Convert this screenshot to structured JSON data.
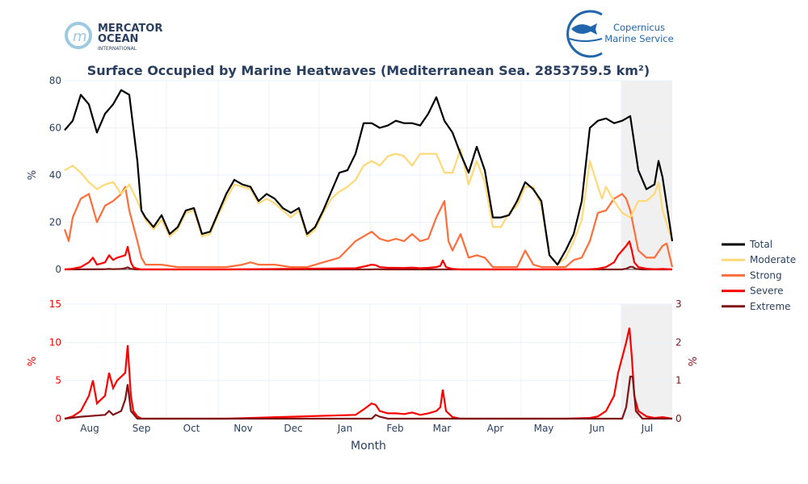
{
  "logos": {
    "left": {
      "line1": "MERCATOR",
      "line2": "OCEAN",
      "line3": "INTERNATIONAL"
    },
    "right": {
      "line1": "Copernicus",
      "line2": "Marine Service"
    }
  },
  "chart_data": {
    "type": "line",
    "title": "Surface Occupied by Marine Heatwaves (Mediterranean Sea. 2853759.5 km²)",
    "xlabel": "Month",
    "x_unit": "days since mid-July",
    "xlim": [
      0,
      376
    ],
    "x_ticks": [
      {
        "label": "Aug",
        "day": 15.5
      },
      {
        "label": "Sep",
        "day": 47.5
      },
      {
        "label": "Oct",
        "day": 78.5
      },
      {
        "label": "Nov",
        "day": 110.5
      },
      {
        "label": "Dec",
        "day": 141.5
      },
      {
        "label": "Jan",
        "day": 173.5
      },
      {
        "label": "Feb",
        "day": 204.5
      },
      {
        "label": "Mar",
        "day": 233.5
      },
      {
        "label": "Apr",
        "day": 266.5
      },
      {
        "label": "May",
        "day": 296.5
      },
      {
        "label": "Jun",
        "day": 329.5
      },
      {
        "label": "Jul",
        "day": 360.5
      }
    ],
    "month_boundaries": [
      31.5,
      63,
      95,
      126.5,
      157.5,
      189,
      220,
      249,
      282.5,
      312.5,
      344.5
    ],
    "shaded_range": [
      344.5,
      376
    ],
    "grid": true,
    "legend_position": "right",
    "top_panel": {
      "ylabel": "%",
      "ylim": [
        0,
        80
      ],
      "yticks": [
        0,
        20,
        40,
        60,
        80
      ],
      "series": [
        "Total",
        "Moderate",
        "Strong",
        "Severe",
        "Extreme"
      ]
    },
    "bottom_panel": {
      "left_axis": {
        "ylabel": "%",
        "ylim": [
          0,
          15
        ],
        "yticks": [
          0,
          5,
          10,
          15
        ],
        "series": "Severe"
      },
      "right_axis": {
        "ylabel": "%",
        "ylim": [
          0,
          3
        ],
        "yticks": [
          0,
          1,
          2,
          3
        ],
        "series": "Extreme"
      }
    },
    "series": [
      {
        "name": "Total",
        "color": "#000000",
        "points": [
          [
            0,
            59
          ],
          [
            5,
            63
          ],
          [
            10,
            74
          ],
          [
            15,
            70
          ],
          [
            20,
            58
          ],
          [
            25,
            66
          ],
          [
            30,
            70
          ],
          [
            35,
            76
          ],
          [
            40,
            74
          ],
          [
            45,
            46
          ],
          [
            47.5,
            25
          ],
          [
            50,
            22
          ],
          [
            55,
            18
          ],
          [
            60,
            23
          ],
          [
            65,
            15
          ],
          [
            70,
            18
          ],
          [
            75,
            25
          ],
          [
            80,
            26
          ],
          [
            85,
            15
          ],
          [
            90,
            16
          ],
          [
            95,
            24
          ],
          [
            100,
            32
          ],
          [
            105,
            38
          ],
          [
            110,
            36
          ],
          [
            115,
            35
          ],
          [
            120,
            29
          ],
          [
            125,
            32
          ],
          [
            130,
            30
          ],
          [
            135,
            26
          ],
          [
            140,
            24
          ],
          [
            145,
            26
          ],
          [
            150,
            15
          ],
          [
            155,
            18
          ],
          [
            160,
            25
          ],
          [
            165,
            33
          ],
          [
            170,
            41
          ],
          [
            175,
            42
          ],
          [
            180,
            49
          ],
          [
            185,
            62
          ],
          [
            190,
            62
          ],
          [
            195,
            60
          ],
          [
            200,
            61
          ],
          [
            205,
            63
          ],
          [
            210,
            62
          ],
          [
            215,
            62
          ],
          [
            220,
            61
          ],
          [
            225,
            66
          ],
          [
            230,
            73
          ],
          [
            235,
            63
          ],
          [
            240,
            58
          ],
          [
            245,
            49
          ],
          [
            250,
            41
          ],
          [
            255,
            52
          ],
          [
            260,
            42
          ],
          [
            265,
            22
          ],
          [
            270,
            22
          ],
          [
            275,
            23
          ],
          [
            280,
            29
          ],
          [
            285,
            37
          ],
          [
            290,
            34
          ],
          [
            295,
            29
          ],
          [
            300,
            6
          ],
          [
            305,
            2
          ],
          [
            310,
            8
          ],
          [
            315,
            15
          ],
          [
            320,
            29
          ],
          [
            325,
            60
          ],
          [
            330,
            63
          ],
          [
            335,
            64
          ],
          [
            340,
            62
          ],
          [
            345,
            63
          ],
          [
            350,
            65
          ],
          [
            355,
            42
          ],
          [
            360,
            34
          ],
          [
            365,
            36
          ],
          [
            367.5,
            46
          ],
          [
            370,
            39
          ],
          [
            376,
            12
          ]
        ]
      },
      {
        "name": "Moderate",
        "color": "#fed976",
        "points": [
          [
            0,
            42
          ],
          [
            5,
            44
          ],
          [
            10,
            41
          ],
          [
            15,
            37
          ],
          [
            20,
            34
          ],
          [
            25,
            36
          ],
          [
            30,
            37
          ],
          [
            35,
            32
          ],
          [
            40,
            36
          ],
          [
            45,
            29
          ],
          [
            47.5,
            25
          ],
          [
            50,
            21
          ],
          [
            55,
            17
          ],
          [
            60,
            21
          ],
          [
            65,
            14
          ],
          [
            70,
            17
          ],
          [
            75,
            24
          ],
          [
            80,
            25
          ],
          [
            85,
            14
          ],
          [
            90,
            15
          ],
          [
            95,
            23
          ],
          [
            100,
            30
          ],
          [
            105,
            36
          ],
          [
            110,
            35
          ],
          [
            115,
            34
          ],
          [
            120,
            28
          ],
          [
            125,
            30
          ],
          [
            130,
            28
          ],
          [
            135,
            25
          ],
          [
            140,
            22
          ],
          [
            145,
            25
          ],
          [
            150,
            14
          ],
          [
            155,
            17
          ],
          [
            160,
            24
          ],
          [
            165,
            30
          ],
          [
            170,
            33
          ],
          [
            175,
            35
          ],
          [
            180,
            38
          ],
          [
            185,
            44
          ],
          [
            190,
            46
          ],
          [
            195,
            44
          ],
          [
            200,
            48
          ],
          [
            205,
            49
          ],
          [
            210,
            48
          ],
          [
            215,
            44
          ],
          [
            220,
            49
          ],
          [
            225,
            49
          ],
          [
            230,
            49
          ],
          [
            235,
            41
          ],
          [
            240,
            41
          ],
          [
            245,
            51
          ],
          [
            250,
            36
          ],
          [
            255,
            46
          ],
          [
            260,
            37
          ],
          [
            265,
            18
          ],
          [
            270,
            18
          ],
          [
            275,
            24
          ],
          [
            280,
            27
          ],
          [
            285,
            35
          ],
          [
            290,
            35
          ],
          [
            295,
            27
          ],
          [
            300,
            6
          ],
          [
            305,
            2
          ],
          [
            310,
            5
          ],
          [
            315,
            12
          ],
          [
            320,
            21
          ],
          [
            325,
            46
          ],
          [
            330,
            35
          ],
          [
            332.5,
            30
          ],
          [
            335,
            35
          ],
          [
            340,
            29
          ],
          [
            345,
            24
          ],
          [
            350,
            22
          ],
          [
            355,
            29
          ],
          [
            360,
            29
          ],
          [
            365,
            32
          ],
          [
            367.5,
            37
          ],
          [
            370,
            25
          ],
          [
            376,
            12
          ]
        ]
      },
      {
        "name": "Strong",
        "color": "#fd6e3a",
        "points": [
          [
            0,
            17
          ],
          [
            2.5,
            12
          ],
          [
            5,
            22
          ],
          [
            10,
            30
          ],
          [
            15,
            32
          ],
          [
            20,
            20
          ],
          [
            25,
            27
          ],
          [
            30,
            29
          ],
          [
            35,
            32
          ],
          [
            37.5,
            35
          ],
          [
            40,
            25
          ],
          [
            45,
            12
          ],
          [
            47.5,
            5
          ],
          [
            50,
            2
          ],
          [
            60,
            2
          ],
          [
            70,
            1
          ],
          [
            80,
            1
          ],
          [
            90,
            1
          ],
          [
            100,
            1
          ],
          [
            110,
            2
          ],
          [
            115,
            3
          ],
          [
            120,
            2
          ],
          [
            130,
            2
          ],
          [
            140,
            1
          ],
          [
            150,
            1
          ],
          [
            160,
            3
          ],
          [
            170,
            5
          ],
          [
            180,
            12
          ],
          [
            190,
            16
          ],
          [
            195,
            13
          ],
          [
            200,
            12
          ],
          [
            205,
            13
          ],
          [
            210,
            12
          ],
          [
            215,
            15
          ],
          [
            220,
            12
          ],
          [
            225,
            13
          ],
          [
            230,
            22
          ],
          [
            235,
            29
          ],
          [
            237.5,
            12
          ],
          [
            240,
            8
          ],
          [
            245,
            15
          ],
          [
            250,
            5
          ],
          [
            255,
            6
          ],
          [
            260,
            5
          ],
          [
            265,
            1
          ],
          [
            275,
            1
          ],
          [
            280,
            1
          ],
          [
            285,
            8
          ],
          [
            290,
            2
          ],
          [
            295,
            1
          ],
          [
            310,
            1
          ],
          [
            315,
            4
          ],
          [
            320,
            5
          ],
          [
            325,
            12
          ],
          [
            330,
            24
          ],
          [
            335,
            25
          ],
          [
            340,
            30
          ],
          [
            345,
            32
          ],
          [
            347.5,
            30
          ],
          [
            350,
            25
          ],
          [
            355,
            8
          ],
          [
            360,
            5
          ],
          [
            365,
            5
          ],
          [
            370,
            10
          ],
          [
            372.5,
            11
          ],
          [
            376,
            1
          ]
        ]
      },
      {
        "name": "Severe",
        "color": "#ff0000",
        "points": [
          [
            0,
            0
          ],
          [
            5,
            0.3
          ],
          [
            10,
            1
          ],
          [
            15,
            3
          ],
          [
            17.5,
            5
          ],
          [
            20,
            2
          ],
          [
            22.5,
            2.5
          ],
          [
            25,
            3
          ],
          [
            27.5,
            6
          ],
          [
            30,
            4
          ],
          [
            32.5,
            5
          ],
          [
            35,
            5.5
          ],
          [
            37.5,
            6
          ],
          [
            39,
            9.6
          ],
          [
            41,
            3
          ],
          [
            42.5,
            1
          ],
          [
            45,
            0.3
          ],
          [
            47.5,
            0
          ],
          [
            100,
            0
          ],
          [
            180,
            0.5
          ],
          [
            185,
            1.2
          ],
          [
            190,
            2
          ],
          [
            192.5,
            1.8
          ],
          [
            195,
            1
          ],
          [
            200,
            0.7
          ],
          [
            205,
            0.7
          ],
          [
            210,
            0.6
          ],
          [
            215,
            0.8
          ],
          [
            220,
            0.5
          ],
          [
            225,
            0.7
          ],
          [
            230,
            1
          ],
          [
            232.5,
            1.5
          ],
          [
            234,
            3.8
          ],
          [
            236,
            1
          ],
          [
            240,
            0.2
          ],
          [
            245,
            0
          ],
          [
            310,
            0
          ],
          [
            325,
            0.1
          ],
          [
            330,
            0.3
          ],
          [
            335,
            1
          ],
          [
            340,
            3
          ],
          [
            342.5,
            6
          ],
          [
            345,
            8
          ],
          [
            347.5,
            10
          ],
          [
            349.5,
            11.9
          ],
          [
            351,
            8
          ],
          [
            352.5,
            3
          ],
          [
            355,
            1
          ],
          [
            360,
            0.3
          ],
          [
            365,
            0.1
          ],
          [
            370,
            0.2
          ],
          [
            376,
            0
          ]
        ]
      },
      {
        "name": "Extreme",
        "color": "#7f1416",
        "points": [
          [
            0,
            0
          ],
          [
            10,
            0.05
          ],
          [
            25,
            0.1
          ],
          [
            27.5,
            0.2
          ],
          [
            30,
            0.1
          ],
          [
            35,
            0.2
          ],
          [
            37.5,
            0.5
          ],
          [
            39,
            0.9
          ],
          [
            41,
            0.2
          ],
          [
            45,
            0
          ],
          [
            190,
            0
          ],
          [
            192.5,
            0.1
          ],
          [
            195,
            0.05
          ],
          [
            200,
            0
          ],
          [
            340,
            0
          ],
          [
            345,
            0
          ],
          [
            347.5,
            0.3
          ],
          [
            350,
            1.1
          ],
          [
            351.5,
            1.1
          ],
          [
            353.5,
            0.2
          ],
          [
            357.5,
            0
          ],
          [
            376,
            0
          ]
        ]
      }
    ]
  }
}
